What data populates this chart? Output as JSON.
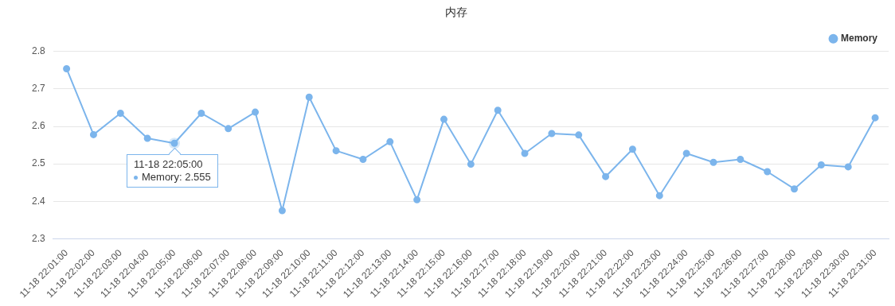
{
  "chart_data": {
    "type": "line",
    "title": "内存",
    "categories": [
      "11-18 22:01:00",
      "11-18 22:02:00",
      "11-18 22:03:00",
      "11-18 22:04:00",
      "11-18 22:05:00",
      "11-18 22:06:00",
      "11-18 22:07:00",
      "11-18 22:08:00",
      "11-18 22:09:00",
      "11-18 22:10:00",
      "11-18 22:11:00",
      "11-18 22:12:00",
      "11-18 22:13:00",
      "11-18 22:14:00",
      "11-18 22:15:00",
      "11-18 22:16:00",
      "11-18 22:17:00",
      "11-18 22:18:00",
      "11-18 22:19:00",
      "11-18 22:20:00",
      "11-18 22:21:00",
      "11-18 22:22:00",
      "11-18 22:23:00",
      "11-18 22:24:00",
      "11-18 22:25:00",
      "11-18 22:26:00",
      "11-18 22:27:00",
      "11-18 22:28:00",
      "11-18 22:29:00",
      "11-18 22:30:00",
      "11-18 22:31:00"
    ],
    "series": [
      {
        "name": "Memory",
        "color": "#7cb5ec",
        "values": [
          2.754,
          2.578,
          2.635,
          2.568,
          2.555,
          2.635,
          2.594,
          2.638,
          2.375,
          2.678,
          2.535,
          2.512,
          2.559,
          2.404,
          2.619,
          2.499,
          2.643,
          2.528,
          2.581,
          2.577,
          2.466,
          2.539,
          2.415,
          2.528,
          2.504,
          2.512,
          2.479,
          2.433,
          2.497,
          2.492,
          2.623
        ]
      }
    ],
    "ylim": [
      2.3,
      2.8
    ],
    "yticks": [
      2.3,
      2.4,
      2.5,
      2.6,
      2.7,
      2.8
    ],
    "grid": "y",
    "legend": "top right",
    "marker": "circle",
    "line_style": "solid",
    "annotations": [
      {
        "text": "11-18 22:05:00\nMemory: 2.555",
        "x": "11-18 22:05:00",
        "y": 2.555
      }
    ]
  }
}
